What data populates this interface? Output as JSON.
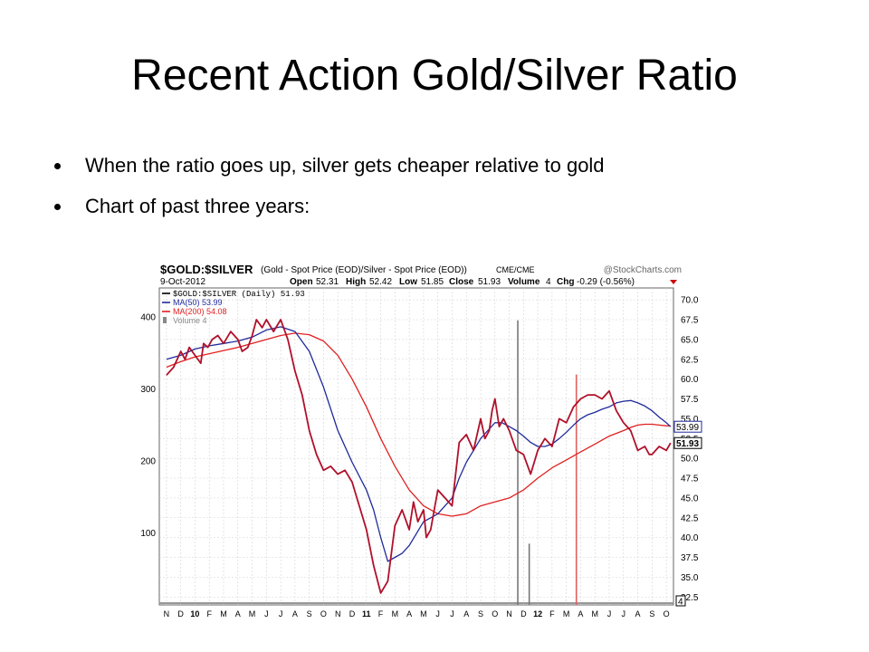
{
  "slide": {
    "title": "Recent Action Gold/Silver Ratio",
    "bullets": [
      "When the ratio goes up, silver gets cheaper relative to gold",
      "Chart of past three years:"
    ]
  },
  "chart_data": {
    "type": "line",
    "title": "$GOLD:$SILVER",
    "subtitle": "(Gold - Spot Price (EOD)/Silver - Spot Price (EOD))",
    "exchange": "CME/CME",
    "source": "@StockCharts.com",
    "date": "9-Oct-2012",
    "quote": {
      "open_label": "Open",
      "open": "52.31",
      "high_label": "High",
      "high": "52.42",
      "low_label": "Low",
      "low": "51.85",
      "close_label": "Close",
      "close": "51.93",
      "volume_label": "Volume",
      "volume": "4",
      "chg_label": "Chg",
      "chg": "-0.29 (-0.56%)"
    },
    "legend": [
      {
        "label": "$GOLD:$SILVER (Daily) 51.93",
        "color": "#000000"
      },
      {
        "label": "MA(50) 53.99",
        "color": "#1f2a9a"
      },
      {
        "label": "MA(200) 54.08",
        "color": "#e02020"
      },
      {
        "label": "Volume 4",
        "color": "#888888"
      }
    ],
    "legend_placement": "top-left",
    "x_ticks": [
      "N",
      "D",
      "10",
      "F",
      "M",
      "A",
      "M",
      "J",
      "J",
      "A",
      "S",
      "O",
      "N",
      "D",
      "11",
      "F",
      "M",
      "A",
      "M",
      "J",
      "J",
      "A",
      "S",
      "O",
      "N",
      "D",
      "12",
      "F",
      "M",
      "A",
      "M",
      "J",
      "J",
      "A",
      "S",
      "O"
    ],
    "y_ticks": [
      "70.0",
      "67.5",
      "65.0",
      "62.5",
      "60.0",
      "57.5",
      "55.0",
      "52.5",
      "50.0",
      "47.5",
      "45.0",
      "42.5",
      "40.0",
      "37.5",
      "35.0",
      "32.5"
    ],
    "ylim": [
      31.5,
      71.5
    ],
    "volume_ticks": [
      "400",
      "300",
      "200",
      "100"
    ],
    "volume_ylim": [
      0,
      440
    ],
    "price_tags": [
      "53.99",
      "51.93"
    ],
    "volume_tag": "4",
    "grid": true,
    "series": [
      {
        "name": "$GOLD:$SILVER (Daily) 51.93",
        "color": "#b0102a",
        "x": [
          0,
          0.5,
          1,
          1.3,
          1.6,
          2,
          2.4,
          2.6,
          2.9,
          3.2,
          3.6,
          4,
          4.5,
          5,
          5.3,
          5.7,
          6,
          6.3,
          6.7,
          7,
          7.5,
          8,
          8.5,
          9,
          9.5,
          10,
          10.5,
          11,
          11.5,
          12,
          12.5,
          13,
          13.5,
          14,
          14.5,
          15,
          15.5,
          16,
          16.5,
          17,
          17.3,
          17.6,
          18,
          18.2,
          18.5,
          18.8,
          19,
          19.5,
          20,
          20.5,
          21,
          21.5,
          22,
          22.3,
          22.6,
          22.8,
          23,
          23.3,
          23.6,
          24,
          24.5,
          25,
          25.5,
          26,
          26.5,
          27,
          27.5,
          28,
          28.5,
          29,
          29.5,
          30,
          30.5,
          31,
          31.5,
          32,
          32.5,
          33,
          33.5,
          33.8,
          34,
          34.5,
          35,
          35.3
        ],
        "values": [
          60.5,
          61.5,
          63.5,
          62.5,
          64.0,
          63.0,
          62.0,
          64.5,
          64.0,
          65.0,
          65.5,
          64.5,
          66.0,
          65.0,
          63.5,
          64.0,
          65.5,
          67.5,
          66.5,
          67.5,
          66.0,
          67.5,
          65.0,
          61.0,
          58.0,
          53.5,
          50.5,
          48.5,
          49.0,
          48.0,
          48.5,
          47.0,
          44.0,
          41.0,
          36.5,
          33.0,
          34.5,
          41.5,
          43.5,
          41.0,
          44.5,
          42.0,
          43.5,
          40.0,
          41.0,
          44.0,
          46.0,
          45.0,
          44.0,
          52.0,
          53.0,
          51.0,
          55.0,
          52.5,
          53.5,
          56.0,
          57.5,
          54.0,
          55.0,
          53.5,
          51.0,
          50.5,
          48.0,
          51.0,
          52.5,
          51.5,
          55.0,
          54.5,
          56.5,
          57.5,
          58.0,
          58.0,
          57.5,
          58.5,
          56.0,
          54.5,
          53.5,
          51.0,
          51.5,
          50.5,
          50.5,
          51.5,
          51.0,
          51.93
        ]
      },
      {
        "name": "MA(50) 53.99",
        "color": "#1f2a9a",
        "x": [
          0,
          1,
          2,
          3,
          4,
          5,
          6,
          7,
          8,
          9,
          10,
          11,
          12,
          13,
          14,
          14.5,
          15,
          15.5,
          16,
          16.5,
          17,
          17.5,
          18,
          18.5,
          19,
          19.5,
          20,
          20.5,
          21,
          21.5,
          22,
          22.5,
          23,
          23.5,
          24,
          24.5,
          25,
          25.5,
          26,
          26.5,
          27,
          27.5,
          28,
          28.5,
          29,
          29.5,
          30,
          30.5,
          31,
          31.5,
          32,
          32.5,
          33,
          33.5,
          34,
          34.5,
          35,
          35.3
        ],
        "values": [
          62.5,
          63.0,
          63.8,
          64.2,
          64.5,
          64.8,
          65.3,
          66.2,
          66.6,
          66.0,
          63.5,
          59.0,
          53.5,
          49.5,
          46.0,
          43.5,
          40.0,
          37.0,
          37.5,
          38.0,
          39.0,
          40.5,
          42.0,
          42.5,
          43.0,
          44.0,
          45.0,
          47.5,
          49.5,
          51.0,
          52.5,
          53.5,
          54.5,
          54.5,
          54.0,
          53.5,
          52.8,
          52.0,
          51.5,
          51.5,
          51.8,
          52.5,
          53.3,
          54.2,
          55.0,
          55.5,
          55.8,
          56.2,
          56.5,
          57.0,
          57.2,
          57.3,
          57.0,
          56.6,
          56.0,
          55.2,
          54.5,
          53.99
        ]
      },
      {
        "name": "MA(200) 54.08",
        "color": "#e02020",
        "x": [
          0,
          1,
          2,
          3,
          4,
          5,
          6,
          7,
          8,
          9,
          10,
          11,
          12,
          13,
          14,
          15,
          16,
          17,
          18,
          19,
          20,
          21,
          22,
          23,
          24,
          25,
          26,
          27,
          28,
          29,
          30,
          31,
          32,
          32.5,
          33,
          33.5,
          34,
          34.5,
          35,
          35.3
        ],
        "values": [
          61.5,
          62.2,
          62.8,
          63.2,
          63.6,
          64.0,
          64.5,
          65.0,
          65.5,
          65.8,
          65.6,
          64.8,
          63.0,
          60.0,
          56.5,
          52.5,
          49.0,
          46.0,
          44.0,
          43.0,
          42.7,
          43.0,
          44.0,
          44.5,
          45.0,
          46.0,
          47.5,
          48.8,
          49.8,
          50.8,
          51.8,
          52.8,
          53.5,
          53.9,
          54.2,
          54.3,
          54.3,
          54.2,
          54.1,
          54.08
        ]
      }
    ],
    "volume_spikes": [
      {
        "x": 24.6,
        "value": 395,
        "color": "#777777"
      },
      {
        "x": 25.4,
        "value": 85,
        "color": "#777777"
      },
      {
        "x": 28.7,
        "value": 320,
        "color": "#e06060"
      }
    ]
  }
}
